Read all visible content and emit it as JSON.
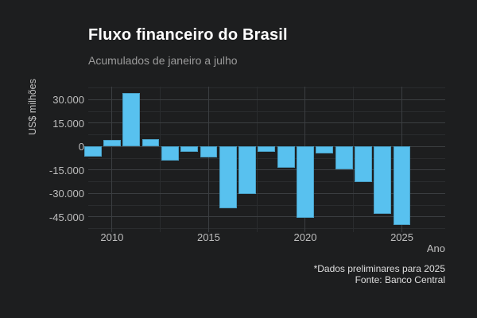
{
  "chart_data": {
    "type": "bar",
    "title": "Fluxo financeiro do Brasil",
    "subtitle": "Acumulados de janeiro a julho",
    "xlabel": "Ano",
    "ylabel": "US$ milhões",
    "caption_line1": "*Dados preliminares para 2025",
    "caption_line2": "Fonte: Banco Central",
    "unit": "US$ milhões",
    "categories": [
      2009,
      2010,
      2011,
      2012,
      2013,
      2014,
      2015,
      2016,
      2017,
      2018,
      2019,
      2020,
      2021,
      2022,
      2023,
      2024,
      2025
    ],
    "values": [
      -6200,
      4200,
      34000,
      4900,
      -9000,
      -3600,
      -7000,
      -39700,
      -30500,
      -3600,
      -13800,
      -45800,
      -4600,
      -14700,
      -22800,
      -43200,
      -50200
    ],
    "bar_color": "#58c1ef",
    "background_color": "#1d1e1f",
    "ylim": [
      -54500,
      38500
    ],
    "xlim": [
      2008.77,
      2027.24
    ],
    "y_ticks": [
      {
        "v": 30000,
        "label": "30.000"
      },
      {
        "v": 15000,
        "label": "15.000"
      },
      {
        "v": 0,
        "label": "0"
      },
      {
        "v": -15000,
        "label": "-15.000"
      },
      {
        "v": -30000,
        "label": "-30.000"
      },
      {
        "v": -45000,
        "label": "-45.000"
      }
    ],
    "y_minor_gridlines": [
      37500,
      22500,
      7500,
      -7500,
      -22500,
      -37500,
      -52500
    ],
    "x_ticks": [
      {
        "v": 2010,
        "label": "2010"
      },
      {
        "v": 2015,
        "label": "2015"
      },
      {
        "v": 2020,
        "label": "2020"
      },
      {
        "v": 2025,
        "label": "2025"
      }
    ],
    "x_minor_gridlines": [
      2012.5,
      2017.5,
      2022.5
    ],
    "grid": "horizontal and vertical, major + minor",
    "legend": "none"
  }
}
